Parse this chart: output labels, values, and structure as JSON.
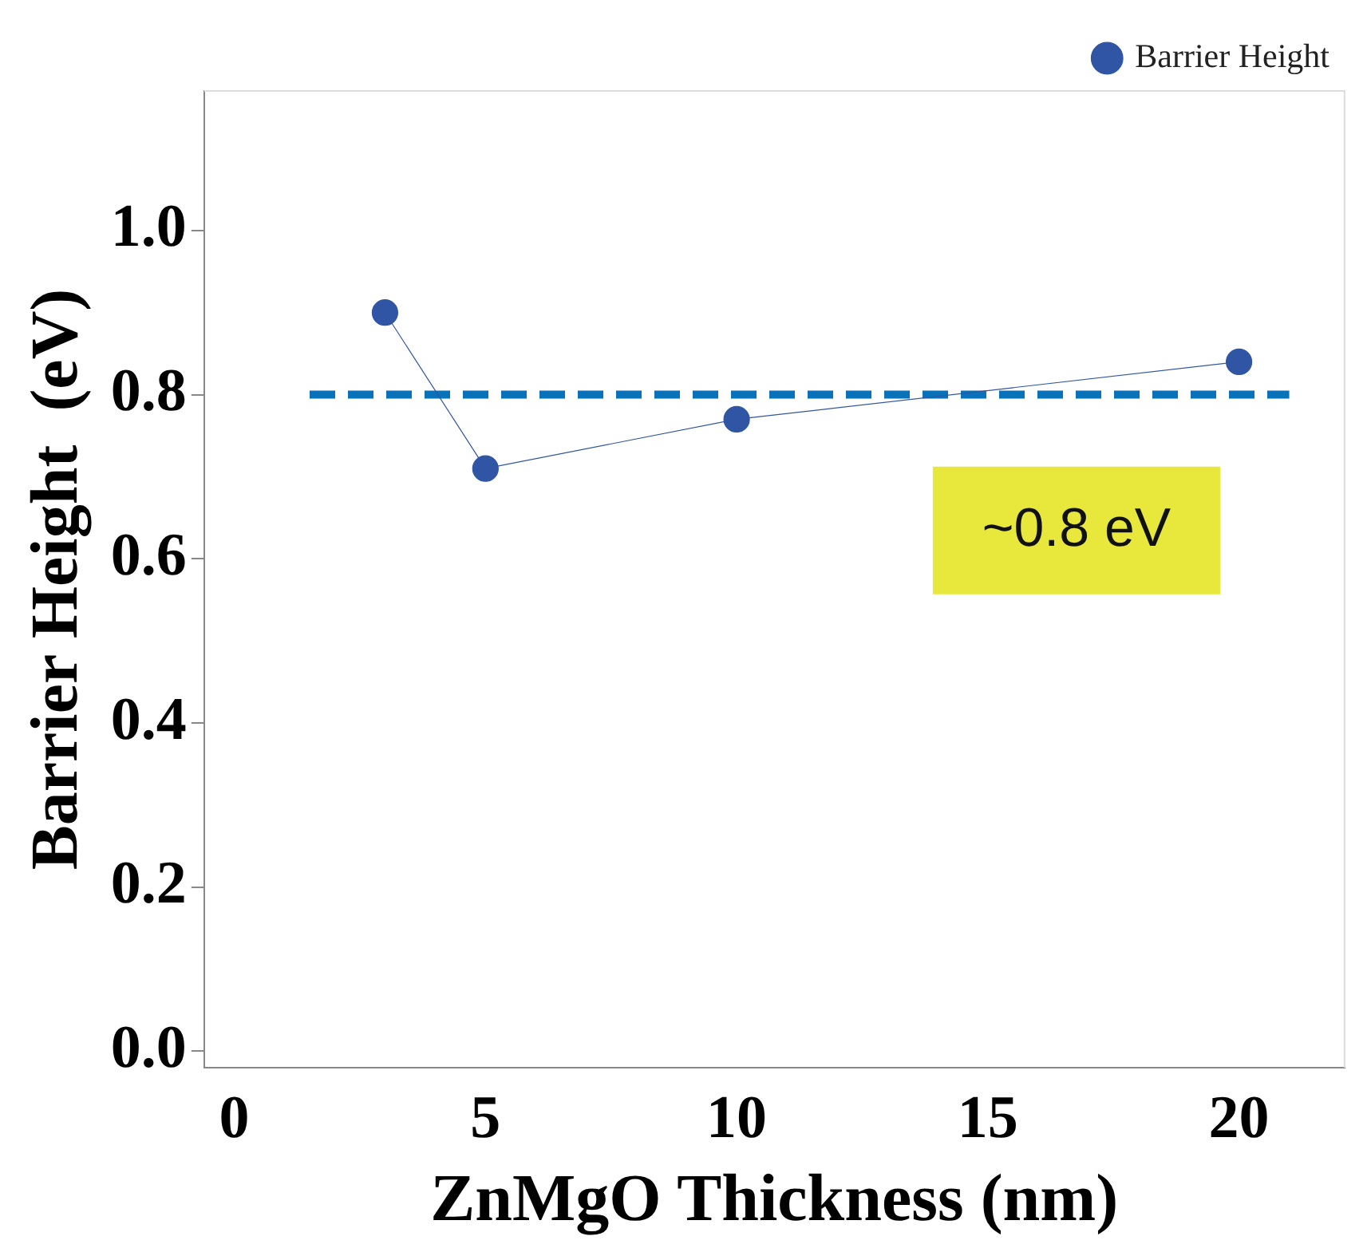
{
  "chart_data": {
    "type": "scatter",
    "xlabel": "ZnMgO Thickness (nm)",
    "ylabel": "Barrier Height  (eV)",
    "xlim": [
      -0.6,
      22.1
    ],
    "xticks": [
      0,
      5,
      10,
      15,
      20
    ],
    "ylim": [
      -0.02,
      1.17
    ],
    "yticks": [
      {
        "value": 0,
        "label": "0.0"
      },
      0.2,
      0.4,
      0.6,
      0.8,
      {
        "value": 1,
        "label": "1.0"
      }
    ],
    "series": [
      {
        "name": "Barrier Height",
        "type": "line",
        "color": "#2f55a4",
        "x": [
          3,
          5,
          10,
          20
        ],
        "values": [
          0.9,
          0.71,
          0.77,
          0.84
        ],
        "marker": "circle",
        "line_style": "solid"
      },
      {
        "type": "line",
        "color": "#0a72b8",
        "x": [
          1.5,
          21
        ],
        "values": [
          0.8,
          0.8
        ],
        "marker": "none",
        "line_style": "dashed"
      }
    ],
    "annotations": [
      "~0.8 eV"
    ],
    "legend": "top right",
    "grid": false
  }
}
